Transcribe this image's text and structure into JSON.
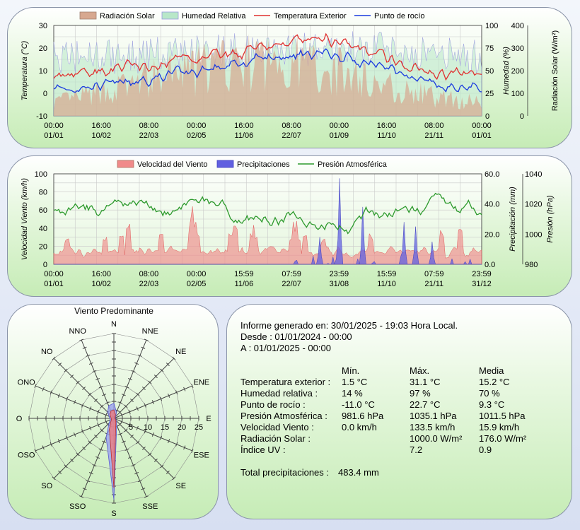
{
  "colors": {
    "solar": "#d7a890",
    "humidity": "#b8e7c8",
    "temperature": "#e03030",
    "dewpoint": "#1a3adf",
    "wind": "#f08a8a",
    "rain": "#6060e0",
    "pressure": "#2d9a2d"
  },
  "chart_data": [
    {
      "type": "line",
      "id": "weather",
      "series": [
        {
          "name": "Radiación Solar",
          "kind": "area",
          "axis": "solar"
        },
        {
          "name": "Humedad Relativa",
          "kind": "area",
          "axis": "humidity"
        },
        {
          "name": "Temperatura Exterior",
          "kind": "line",
          "axis": "temperature"
        },
        {
          "name": "Punto de rocío",
          "kind": "line",
          "axis": "temperature"
        }
      ],
      "ylabel": "Temperatura (°C)",
      "ylim": [
        -10,
        30
      ],
      "yticks": [
        "30",
        "20",
        "10",
        "0",
        "-10"
      ],
      "ylabel2": "Humedad (%)",
      "ylim2": [
        0,
        100
      ],
      "yticks2": [
        "100",
        "75",
        "50",
        "25",
        "0"
      ],
      "ylabel3": "Radiación Solar (W/m²)",
      "ylim3": [
        0,
        400
      ],
      "yticks3": [
        "400",
        "300",
        "200",
        "100",
        "0"
      ],
      "xticks": [
        [
          "00:00",
          "01/01"
        ],
        [
          "16:00",
          "10/02"
        ],
        [
          "08:00",
          "22/03"
        ],
        [
          "00:00",
          "02/05"
        ],
        [
          "16:00",
          "11/06"
        ],
        [
          "08:00",
          "22/07"
        ],
        [
          "00:00",
          "01/09"
        ],
        [
          "16:00",
          "11/10"
        ],
        [
          "08:00",
          "21/11"
        ],
        [
          "00:00",
          "01/01"
        ]
      ],
      "monthly_temperature": [
        8,
        10,
        12,
        14,
        16,
        19,
        22,
        24,
        19,
        13,
        9,
        8
      ],
      "monthly_dewpoint": [
        2,
        3,
        5,
        8,
        11,
        14,
        17,
        18,
        14,
        9,
        3,
        3
      ],
      "monthly_humidity": [
        65,
        66,
        65,
        70,
        74,
        72,
        75,
        72,
        75,
        72,
        68,
        65
      ],
      "monthly_solar": [
        70,
        110,
        160,
        210,
        250,
        270,
        280,
        250,
        190,
        130,
        90,
        70
      ],
      "grid": true,
      "legend": "top"
    },
    {
      "type": "line",
      "id": "wind",
      "series": [
        {
          "name": "Velocidad del Viento",
          "kind": "area",
          "axis": "wind"
        },
        {
          "name": "Precipitaciones",
          "kind": "area",
          "axis": "rain"
        },
        {
          "name": "Presión Atmosférica",
          "kind": "line",
          "axis": "pressure"
        }
      ],
      "ylabel": "Velocidad Viento (km/h)",
      "ylim": [
        0,
        100
      ],
      "yticks": [
        "100",
        "80",
        "60",
        "40",
        "20",
        "0"
      ],
      "ylabel2": "Precipitación (mm)",
      "ylim2": [
        0,
        60
      ],
      "yticks2": [
        "60.0",
        "40.0",
        "20.0",
        "0.0"
      ],
      "ylabel3": "Presión (hPa)",
      "ylim3": [
        980,
        1040
      ],
      "yticks3": [
        "1040",
        "1020",
        "1000",
        "980"
      ],
      "xticks": [
        [
          "00:00",
          "01/01"
        ],
        [
          "16:00",
          "10/02"
        ],
        [
          "08:00",
          "22/03"
        ],
        [
          "00:00",
          "02/05"
        ],
        [
          "15:59",
          "11/06"
        ],
        [
          "07:59",
          "22/07"
        ],
        [
          "23:59",
          "31/08"
        ],
        [
          "15:59",
          "11/10"
        ],
        [
          "07:59",
          "21/11"
        ],
        [
          "23:59",
          "31/12"
        ]
      ],
      "rain_peaks": [
        {
          "date": "01/09",
          "mm": 57
        },
        {
          "date": "20/09",
          "mm": 38
        },
        {
          "date": "25/10",
          "mm": 28
        },
        {
          "date": "05/11",
          "mm": 25
        },
        {
          "date": "15/08",
          "mm": 18
        },
        {
          "date": "18/11",
          "mm": 15
        }
      ],
      "grid": true,
      "legend": "top"
    },
    {
      "type": "radar",
      "id": "wind-rose",
      "title": "Viento Predominante",
      "directions": [
        "N",
        "NNE",
        "NE",
        "ENE",
        "E",
        "ESE",
        "SE",
        "SSE",
        "S",
        "SSO",
        "SO",
        "OSO",
        "O",
        "ONO",
        "NO",
        "NNO"
      ],
      "rings": [
        "5",
        "10",
        "15",
        "20",
        "25"
      ],
      "rmax": 25,
      "series": [
        {
          "values": [
            4.5,
            2.0,
            0.8,
            0.4,
            0.4,
            0.6,
            1.0,
            2.2,
            24.0,
            6.0,
            2.0,
            1.2,
            1.2,
            1.5,
            2.6,
            4.0
          ]
        },
        {
          "values": [
            2.5,
            1.2,
            0.5,
            0.3,
            0.3,
            0.4,
            0.8,
            1.5,
            20.5,
            3.5,
            1.2,
            0.8,
            0.8,
            1.0,
            1.6,
            2.3
          ]
        }
      ]
    }
  ],
  "report": {
    "generated": "Informe generado en: 30/01/2025 - 19:03 Hora Local.",
    "from": "Desde : 01/01/2024 - 00:00",
    "to": "A : 01/01/2025 - 00:00",
    "headers": [
      "Mín.",
      "Máx.",
      "Media"
    ],
    "rows": [
      {
        "label": "Temperatura exterior :",
        "min": "1.5 °C",
        "max": "31.1 °C",
        "avg": "15.2 °C"
      },
      {
        "label": "Humedad relativa :",
        "min": "14 %",
        "max": "97 %",
        "avg": "70 %"
      },
      {
        "label": "Punto de rocío :",
        "min": "-11.0 °C",
        "max": "22.7 °C",
        "avg": "9.3 °C"
      },
      {
        "label": "Presión Atmosférica :",
        "min": "981.6 hPa",
        "max": "1035.1 hPa",
        "avg": "1011.5 hPa"
      },
      {
        "label": "Velocidad Viento :",
        "min": "0.0 km/h",
        "max": "133.5 km/h",
        "avg": "15.9 km/h"
      },
      {
        "label": "Radiación Solar :",
        "min": "",
        "max": "1000.0 W/m²",
        "avg": "176.0 W/m²"
      },
      {
        "label": "Índice UV :",
        "min": "",
        "max": "7.2",
        "avg": "0.9"
      }
    ],
    "total_label": "Total precipitaciones :",
    "total_value": "483.4 mm"
  }
}
